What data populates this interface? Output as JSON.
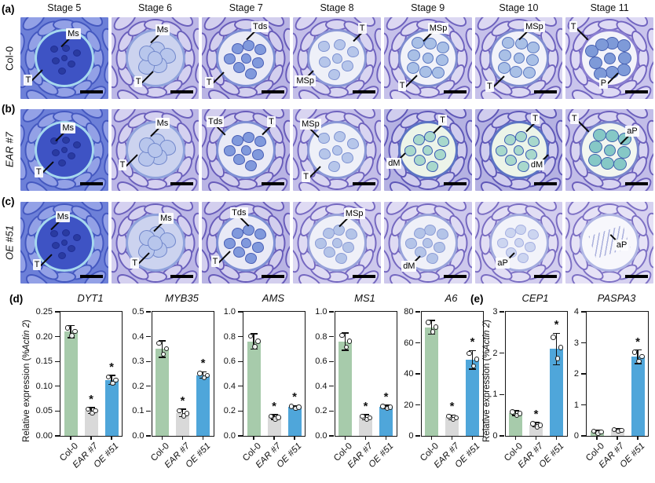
{
  "figure": {
    "panel_labels": {
      "a": "(a)",
      "b": "(b)",
      "c": "(c)",
      "d": "(d)",
      "e": "(e)"
    },
    "stage_headers": [
      "Stage 5",
      "Stage 6",
      "Stage 7",
      "Stage 8",
      "Stage 9",
      "Stage 10",
      "Stage 11"
    ],
    "rows": [
      {
        "panel": "(a)",
        "genotype": "Col-0",
        "genotype_italic": false,
        "tiles": [
          {
            "stage": "Stage 5",
            "variant": "dense",
            "annotations": [
              {
                "text": "Ms",
                "x": 52,
                "y": 13,
                "angle": 135
              },
              {
                "text": "T",
                "x": 4,
                "y": 70,
                "angle": 315
              }
            ]
          },
          {
            "stage": "Stage 6",
            "variant": "meio",
            "annotations": [
              {
                "text": "Ms",
                "x": 50,
                "y": 9,
                "angle": 135
              },
              {
                "text": "T",
                "x": 26,
                "y": 72,
                "angle": 315
              }
            ]
          },
          {
            "stage": "Stage 7",
            "variant": "tetrad",
            "annotations": [
              {
                "text": "Tds",
                "x": 56,
                "y": 5,
                "angle": 135
              },
              {
                "text": "T",
                "x": 3,
                "y": 73,
                "angle": 315
              }
            ]
          },
          {
            "stage": "Stage 8",
            "variant": "earlymsp",
            "annotations": [
              {
                "text": "T",
                "x": 74,
                "y": 7,
                "angle": 135
              },
              {
                "text": "MSp",
                "x": 2,
                "y": 71,
                "angle": 315
              }
            ]
          },
          {
            "stage": "Stage 9",
            "variant": "microspore",
            "annotations": [
              {
                "text": "MSp",
                "x": 50,
                "y": 7,
                "angle": 135
              },
              {
                "text": "T",
                "x": 16,
                "y": 77,
                "angle": 315
              }
            ]
          },
          {
            "stage": "Stage 10",
            "variant": "microspore",
            "annotations": [
              {
                "text": "MSp",
                "x": 56,
                "y": 5,
                "angle": 135
              },
              {
                "text": "T",
                "x": 12,
                "y": 78,
                "angle": 315
              }
            ]
          },
          {
            "stage": "Stage 11",
            "variant": "pollen",
            "annotations": [
              {
                "text": "T",
                "x": 4,
                "y": 5,
                "angle": 45
              },
              {
                "text": "P",
                "x": 38,
                "y": 74,
                "angle": 315
              }
            ]
          }
        ]
      },
      {
        "panel": "(b)",
        "genotype": "EAR #7",
        "genotype_italic": true,
        "tiles": [
          {
            "stage": "Stage 5",
            "variant": "dense",
            "annotations": [
              {
                "text": "Ms",
                "x": 46,
                "y": 16,
                "angle": 135
              },
              {
                "text": "T",
                "x": 16,
                "y": 70,
                "angle": 315
              }
            ]
          },
          {
            "stage": "Stage 6",
            "variant": "meio",
            "annotations": [
              {
                "text": "Ms",
                "x": 50,
                "y": 11,
                "angle": 135
              },
              {
                "text": "T",
                "x": 8,
                "y": 62,
                "angle": 315
              }
            ]
          },
          {
            "stage": "Stage 7",
            "variant": "tetrad",
            "annotations": [
              {
                "text": "Tds",
                "x": 5,
                "y": 9,
                "angle": 45
              },
              {
                "text": "T",
                "x": 74,
                "y": 9,
                "angle": 135
              }
            ]
          },
          {
            "stage": "Stage 8",
            "variant": "earlymsp",
            "annotations": [
              {
                "text": "MSp",
                "x": 8,
                "y": 12,
                "angle": 45
              },
              {
                "text": "T",
                "x": 10,
                "y": 76,
                "angle": 315
              }
            ]
          },
          {
            "stage": "Stage 9",
            "variant": "teal",
            "annotations": [
              {
                "text": "T",
                "x": 62,
                "y": 7,
                "angle": 135
              },
              {
                "text": "dM",
                "x": 3,
                "y": 60,
                "angle": 315
              }
            ]
          },
          {
            "stage": "Stage 10",
            "variant": "teal",
            "annotations": [
              {
                "text": "T",
                "x": 64,
                "y": 5,
                "angle": 135
              },
              {
                "text": "dM",
                "x": 62,
                "y": 62,
                "angle": 315
              }
            ]
          },
          {
            "stage": "Stage 11",
            "variant": "tealpollen",
            "annotations": [
              {
                "text": "T",
                "x": 5,
                "y": 5,
                "angle": 45
              },
              {
                "text": "aP",
                "x": 68,
                "y": 20,
                "angle": 135
              }
            ]
          }
        ]
      },
      {
        "panel": "(c)",
        "genotype": "OE #51",
        "genotype_italic": true,
        "tiles": [
          {
            "stage": "Stage 5",
            "variant": "dense",
            "annotations": [
              {
                "text": "Ms",
                "x": 40,
                "y": 12,
                "angle": 135
              },
              {
                "text": "T",
                "x": 14,
                "y": 70,
                "angle": 315
              }
            ]
          },
          {
            "stage": "Stage 6",
            "variant": "meio",
            "annotations": [
              {
                "text": "Ms",
                "x": 54,
                "y": 13,
                "angle": 135
              },
              {
                "text": "T",
                "x": 22,
                "y": 68,
                "angle": 315
              }
            ]
          },
          {
            "stage": "Stage 7",
            "variant": "tetrad",
            "annotations": [
              {
                "text": "Tds",
                "x": 32,
                "y": 7,
                "angle": 45
              },
              {
                "text": "T",
                "x": 10,
                "y": 66,
                "angle": 315
              }
            ]
          },
          {
            "stage": "Stage 8",
            "variant": "faint",
            "annotations": [
              {
                "text": "MSp",
                "x": 58,
                "y": 8,
                "angle": 135
              }
            ]
          },
          {
            "stage": "Stage 9",
            "variant": "faint",
            "annotations": [
              {
                "text": "dM",
                "x": 20,
                "y": 72,
                "angle": 315
              }
            ]
          },
          {
            "stage": "Stage 10",
            "variant": "ghost",
            "annotations": [
              {
                "text": "aP",
                "x": 24,
                "y": 68,
                "angle": 315
              }
            ]
          },
          {
            "stage": "Stage 11",
            "variant": "empty",
            "annotations": [
              {
                "text": "aP",
                "x": 56,
                "y": 46,
                "angle": 225
              }
            ]
          }
        ]
      }
    ],
    "micrograph_label_meanings": [
      "Ms",
      "T",
      "Tds",
      "MSp",
      "dM",
      "P",
      "aP"
    ]
  },
  "charts_shared": {
    "ylabel_prefix": "Relative expression (% ",
    "ylabel_italic": "Actin 2",
    "ylabel_suffix": ")",
    "bar_colors": [
      "#a7cbab",
      "#d9d9d9",
      "#4fa6da"
    ],
    "categories_italic": [
      false,
      true,
      true
    ]
  },
  "chart_data": [
    {
      "type": "bar",
      "panel": "d",
      "title": "DYT1",
      "categories": [
        "Col-0",
        "EAR #7",
        "OE #51"
      ],
      "values": [
        0.21,
        0.051,
        0.113
      ],
      "errors": [
        0.012,
        0.006,
        0.009
      ],
      "significance": [
        "",
        "*",
        "*"
      ],
      "ylim": [
        0,
        0.25
      ],
      "yticks": [
        0,
        0.05,
        0.1,
        0.15,
        0.2,
        0.25
      ],
      "ytick_labels": [
        "0.00",
        "0.05",
        "0.10",
        "0.15",
        "0.20",
        "0.25"
      ],
      "show_ylabel": true
    },
    {
      "type": "bar",
      "panel": "d",
      "title": "MYB35",
      "categories": [
        "Col-0",
        "EAR #7",
        "OE #51"
      ],
      "values": [
        0.35,
        0.092,
        0.245
      ],
      "errors": [
        0.033,
        0.015,
        0.013
      ],
      "significance": [
        "",
        "*",
        "*"
      ],
      "ylim": [
        0,
        0.5
      ],
      "yticks": [
        0,
        0.1,
        0.2,
        0.3,
        0.4,
        0.5
      ],
      "ytick_labels": [
        "0.0",
        "0.1",
        "0.2",
        "0.3",
        "0.4",
        "0.5"
      ],
      "show_ylabel": false
    },
    {
      "type": "bar",
      "panel": "d",
      "title": "AMS",
      "categories": [
        "Col-0",
        "EAR #7",
        "OE #51"
      ],
      "values": [
        0.76,
        0.152,
        0.235
      ],
      "errors": [
        0.062,
        0.018,
        0.01
      ],
      "significance": [
        "",
        "*",
        "*"
      ],
      "ylim": [
        0,
        1.0
      ],
      "yticks": [
        0,
        0.2,
        0.4,
        0.6,
        0.8,
        1.0
      ],
      "ytick_labels": [
        "0.0",
        "0.2",
        "0.4",
        "0.6",
        "0.8",
        "1.0"
      ],
      "show_ylabel": false
    },
    {
      "type": "bar",
      "panel": "d",
      "title": "MS1",
      "categories": [
        "Col-0",
        "EAR #7",
        "OE #51"
      ],
      "values": [
        0.76,
        0.15,
        0.235
      ],
      "errors": [
        0.07,
        0.02,
        0.012
      ],
      "significance": [
        "",
        "*",
        "*"
      ],
      "ylim": [
        0,
        1.0
      ],
      "yticks": [
        0,
        0.2,
        0.4,
        0.6,
        0.8,
        1.0
      ],
      "ytick_labels": [
        "0.0",
        "0.2",
        "0.4",
        "0.6",
        "0.8",
        "1.0"
      ],
      "show_ylabel": false
    },
    {
      "type": "bar",
      "panel": "d",
      "title": "A6",
      "categories": [
        "Col-0",
        "EAR #7",
        "OE #51"
      ],
      "values": [
        70,
        12,
        49
      ],
      "errors": [
        4.5,
        1.5,
        6
      ],
      "significance": [
        "",
        "*",
        "*"
      ],
      "ylim": [
        0,
        80
      ],
      "yticks": [
        0,
        20,
        40,
        60,
        80
      ],
      "ytick_labels": [
        "0",
        "20",
        "40",
        "60",
        "80"
      ],
      "show_ylabel": false
    },
    {
      "type": "bar",
      "panel": "e",
      "title": "CEP1",
      "categories": [
        "Col-0",
        "EAR #7",
        "OE #51"
      ],
      "values": [
        0.55,
        0.27,
        2.1
      ],
      "errors": [
        0.06,
        0.05,
        0.38
      ],
      "significance": [
        "",
        "*",
        "*"
      ],
      "ylim": [
        0,
        3
      ],
      "yticks": [
        0,
        1,
        2,
        3
      ],
      "ytick_labels": [
        "0",
        "1",
        "2",
        "3"
      ],
      "show_ylabel": true
    },
    {
      "type": "bar",
      "panel": "e",
      "title": "PASPA3",
      "categories": [
        "Col-0",
        "EAR #7",
        "OE #51"
      ],
      "values": [
        0.14,
        0.2,
        2.55
      ],
      "errors": [
        0.05,
        0.04,
        0.22
      ],
      "significance": [
        "",
        "",
        "*"
      ],
      "ylim": [
        0,
        4
      ],
      "yticks": [
        0,
        1,
        2,
        3,
        4
      ],
      "ytick_labels": [
        "0",
        "1",
        "2",
        "3",
        "4"
      ],
      "show_ylabel": false
    }
  ]
}
